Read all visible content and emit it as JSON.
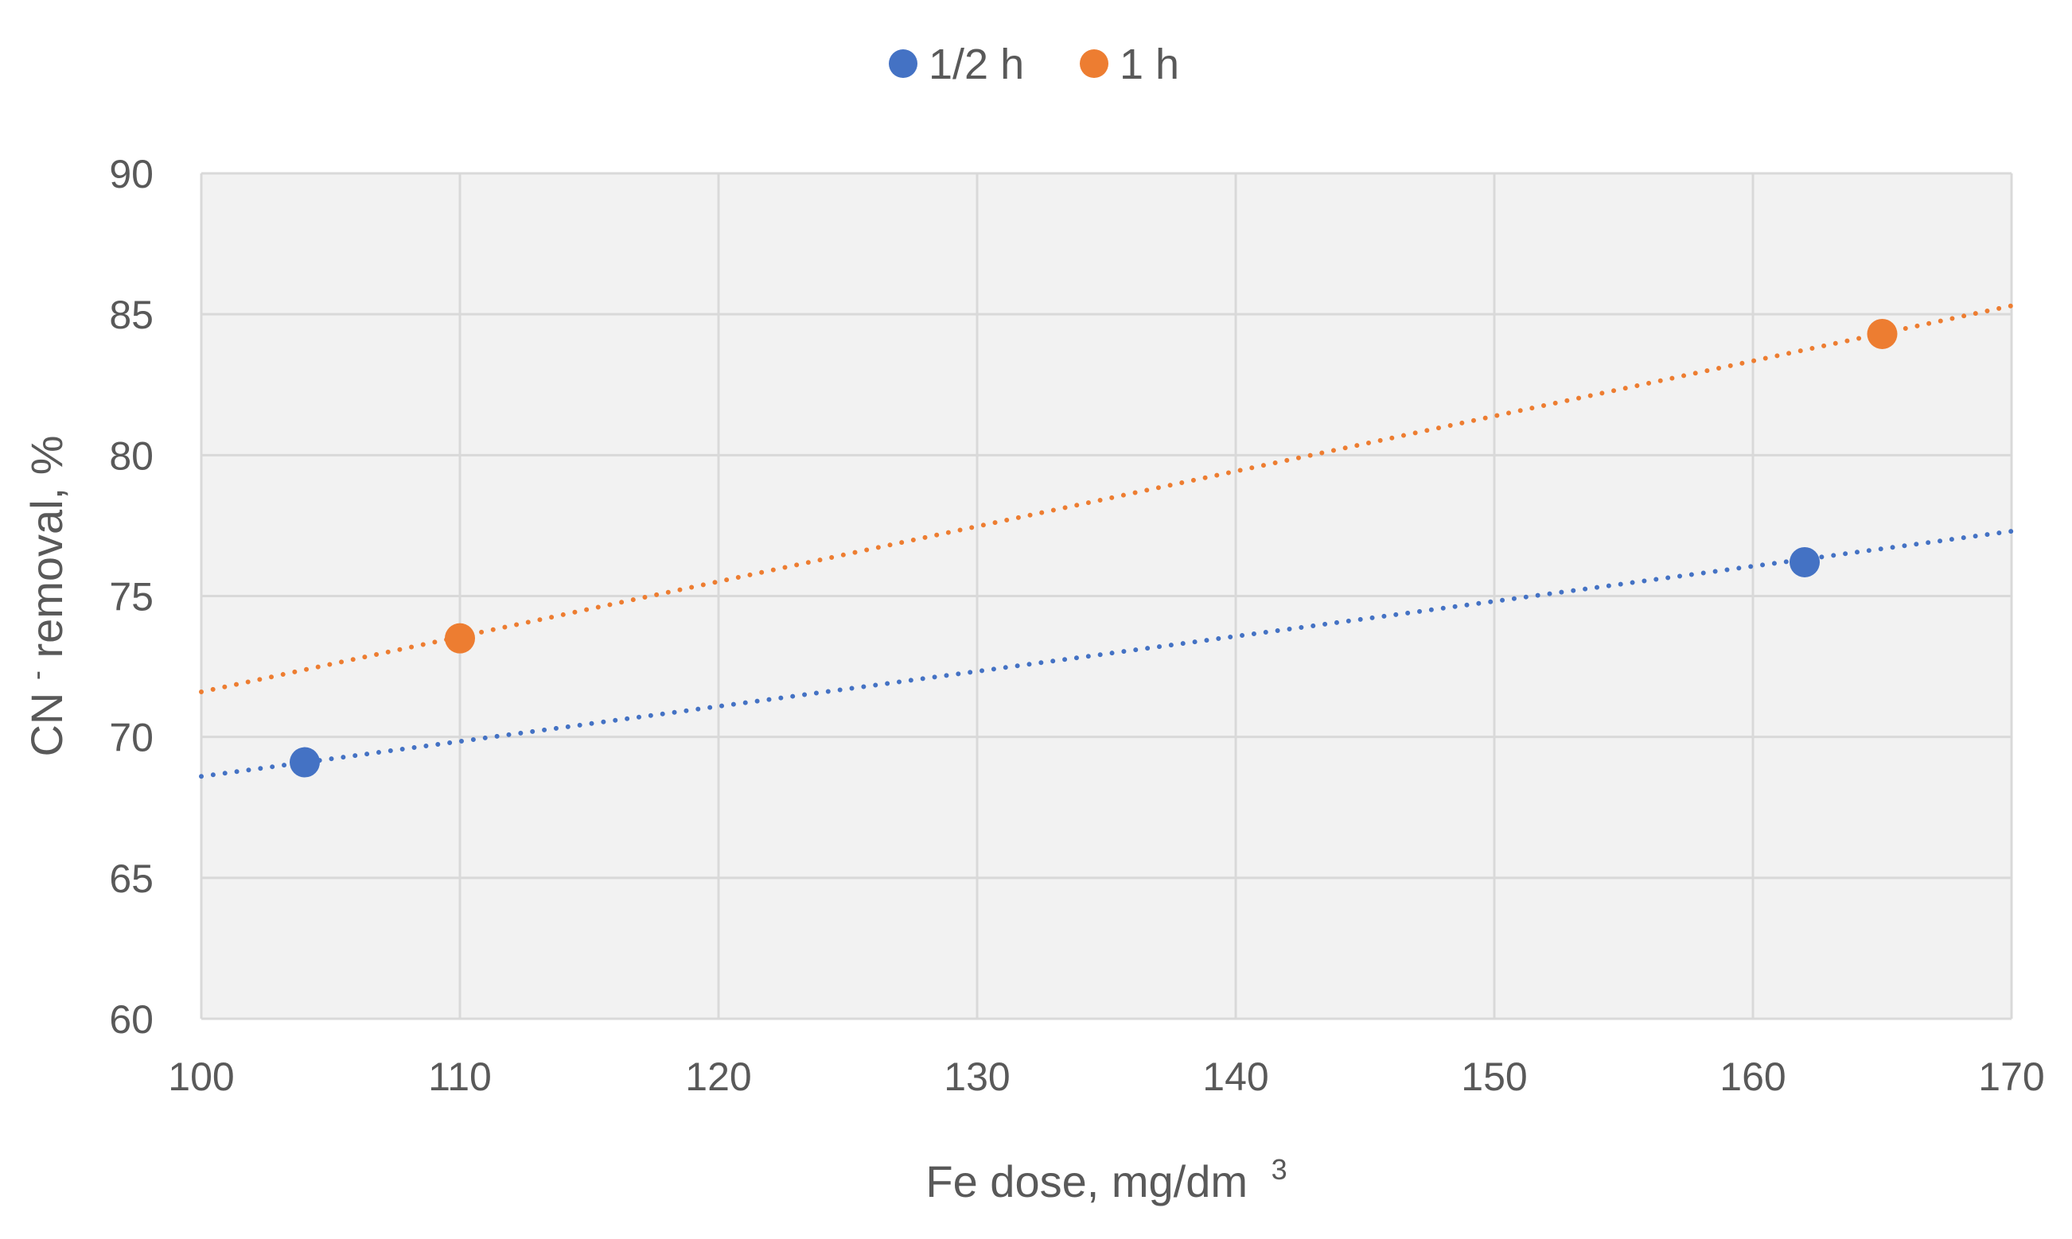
{
  "chart_data": {
    "type": "scatter",
    "title": "",
    "xlabel": "Fe dose, mg/dm",
    "xlabel_sup": "3",
    "ylabel": "CN",
    "ylabel_sup": "-",
    "ylabel_rest": " removal, %",
    "xlim": [
      100,
      170
    ],
    "ylim": [
      60,
      90
    ],
    "x_ticks": [
      100,
      110,
      120,
      130,
      140,
      150,
      160,
      170
    ],
    "y_ticks": [
      60,
      65,
      70,
      75,
      80,
      85,
      90
    ],
    "grid": true,
    "legend_position": "top",
    "series": [
      {
        "name": "1/2 h",
        "color": "#4472C4",
        "points": [
          [
            104,
            69.1
          ],
          [
            162,
            76.2
          ]
        ],
        "trendline": {
          "style": "dotted",
          "x": [
            100,
            170
          ],
          "y": [
            68.6,
            77.3
          ]
        }
      },
      {
        "name": "1 h",
        "color": "#ED7D31",
        "points": [
          [
            110,
            73.5
          ],
          [
            165,
            84.3
          ]
        ],
        "trendline": {
          "style": "dotted",
          "x": [
            100,
            170
          ],
          "y": [
            71.6,
            85.3
          ]
        }
      }
    ],
    "plot_background": "#F2F2F2",
    "gridline_color": "#D9D9D9"
  }
}
